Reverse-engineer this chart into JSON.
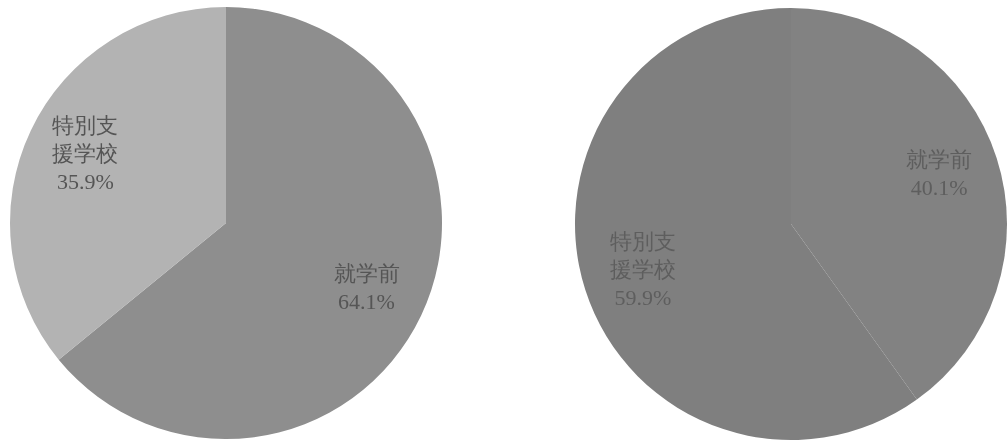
{
  "chart_data": [
    {
      "type": "pie",
      "categories": [
        "就学前",
        "特別支援学校"
      ],
      "values": [
        64.1,
        35.9
      ],
      "colors": [
        "#8e8e8e",
        "#b3b3b3"
      ],
      "value_labels": [
        "64.1%",
        "35.9%"
      ]
    },
    {
      "type": "pie",
      "categories": [
        "就学前",
        "特別支援学校"
      ],
      "values": [
        40.1,
        59.9
      ],
      "colors": [
        "#828282",
        "#7f7f7f"
      ],
      "value_labels": [
        "40.1%",
        "59.9%"
      ]
    }
  ]
}
